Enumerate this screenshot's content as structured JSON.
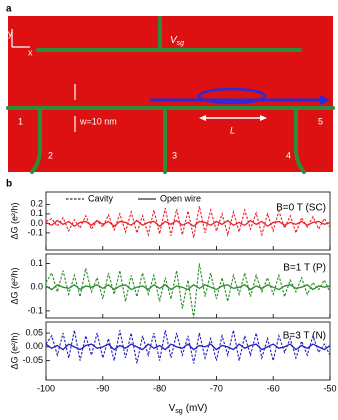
{
  "diagram": {
    "label": "a",
    "axis_y": "y",
    "axis_x": "x",
    "gate_label": {
      "text": "V",
      "subscript": "sg"
    },
    "width_label": "w=10 nm",
    "length_label": "L",
    "terminals": [
      "1",
      "2",
      "3",
      "4",
      "5"
    ]
  },
  "panel_label": "b",
  "x_label": {
    "text": "V",
    "subscript": "sg",
    "rest": "(mV)"
  },
  "chart_data": [
    {
      "type": "line",
      "y_label": "ΔG (e²/h)",
      "annotation": "B=0 T (SC)",
      "annotation_color": "#e8212b",
      "x": [
        -100,
        -99,
        -98,
        -97,
        -96,
        -95,
        -94,
        -93,
        -92,
        -91,
        -90,
        -89,
        -88,
        -87,
        -86,
        -85,
        -84,
        -83,
        -82,
        -81,
        -80,
        -79,
        -78,
        -77,
        -76,
        -75,
        -74,
        -73,
        -72,
        -71,
        -70,
        -69,
        -68,
        -67,
        -66,
        -65,
        -64,
        -63,
        -62,
        -61,
        -60,
        -59,
        -58,
        -57,
        -56,
        -55,
        -54,
        -53,
        -52,
        -51,
        -50
      ],
      "xlim": [
        -100,
        -50
      ],
      "xticks": [
        -100,
        -90,
        -80,
        -70,
        -60,
        -50
      ],
      "ylim": [
        -0.28,
        0.33
      ],
      "yticks": [
        {
          "value": 0.2,
          "label": "0.2"
        },
        {
          "value": 0.1,
          "label": "0.1"
        },
        {
          "value": 0,
          "label": "0.0"
        },
        {
          "value": -0.1,
          "label": "-0.1"
        }
      ],
      "series": [
        {
          "name": "Cavity",
          "color": "#e8212b",
          "dashed": true,
          "values": [
            0.02,
            0.05,
            -0.03,
            0.06,
            -0.08,
            0.04,
            -0.05,
            0.08,
            -0.06,
            0.03,
            -0.04,
            0.09,
            -0.07,
            0.1,
            -0.09,
            0.12,
            -0.1,
            0.08,
            -0.12,
            0.14,
            -0.11,
            0.16,
            -0.13,
            0.15,
            -0.12,
            0.13,
            -0.15,
            0.18,
            -0.1,
            0.14,
            -0.08,
            0.1,
            -0.12,
            0.12,
            -0.09,
            0.14,
            -0.06,
            0.11,
            -0.12,
            0.1,
            -0.08,
            0.13,
            -0.05,
            0.08,
            -0.1,
            0.06,
            -0.04,
            0.07,
            -0.06,
            0.05,
            -0.04
          ]
        },
        {
          "name": "Open wire",
          "color": "#e8212b",
          "dashed": false,
          "values": [
            0.01,
            -0.02,
            0.03,
            -0.01,
            0.02,
            -0.03,
            0.01,
            0.02,
            -0.02,
            0.03,
            -0.01,
            0.02,
            -0.03,
            0.02,
            0.01,
            -0.02,
            0.03,
            -0.02,
            0.01,
            0.02,
            -0.03,
            0.02,
            -0.01,
            0.03,
            -0.02,
            0.01,
            -0.03,
            0.02,
            0.01,
            -0.02,
            0.02,
            -0.01,
            0.03,
            -0.02,
            0.01,
            -0.02,
            0.03,
            -0.01,
            0.02,
            -0.03,
            0.01,
            0.02,
            -0.02,
            0.01,
            -0.01,
            0.02,
            -0.02,
            0.01,
            0.02,
            -0.01,
            0.01
          ]
        }
      ]
    },
    {
      "type": "line",
      "y_label": "ΔG (e²/h)",
      "annotation": "B=1 T (P)",
      "annotation_color": "#2a8a2a",
      "x": [
        -100,
        -99,
        -98,
        -97,
        -96,
        -95,
        -94,
        -93,
        -92,
        -91,
        -90,
        -89,
        -88,
        -87,
        -86,
        -85,
        -84,
        -83,
        -82,
        -81,
        -80,
        -79,
        -78,
        -77,
        -76,
        -75,
        -74,
        -73,
        -72,
        -71,
        -70,
        -69,
        -68,
        -67,
        -66,
        -65,
        -64,
        -63,
        -62,
        -61,
        -60,
        -59,
        -58,
        -57,
        -56,
        -55,
        -54,
        -53,
        -52,
        -51,
        -50
      ],
      "xlim": [
        -100,
        -50
      ],
      "xticks": [
        -100,
        -90,
        -80,
        -70,
        -60,
        -50
      ],
      "ylim": [
        -0.13,
        0.14
      ],
      "yticks": [
        0.1,
        {
          "value": 0,
          "label": "0.0"
        },
        -0.1
      ],
      "series": [
        {
          "color": "#2a8a2a",
          "dashed": true,
          "values": [
            0.02,
            0.06,
            -0.02,
            0.07,
            -0.03,
            0.05,
            -0.04,
            0.08,
            -0.02,
            0.04,
            -0.05,
            0.06,
            -0.03,
            0.07,
            -0.06,
            0.05,
            -0.04,
            0.06,
            -0.03,
            0.05,
            -0.06,
            0.04,
            -0.05,
            0.07,
            -0.09,
            0.03,
            -0.13,
            0.1,
            -0.04,
            0.06,
            -0.05,
            0.04,
            -0.06,
            0.05,
            -0.03,
            0.06,
            -0.04,
            0.05,
            -0.02,
            0.04,
            -0.03,
            0.05,
            -0.04,
            0.03,
            -0.02,
            0.04,
            -0.03,
            0.02,
            -0.01,
            0.03,
            -0.02
          ]
        },
        {
          "color": "#2a8a2a",
          "dashed": false,
          "values": [
            0.005,
            -0.01,
            0.01,
            0,
            -0.005,
            0.01,
            -0.01,
            0.005,
            0,
            0.01,
            -0.005,
            0.01,
            -0.01,
            0.005,
            0.01,
            -0.01,
            0,
            0.005,
            -0.01,
            0.01,
            -0.005,
            0.01,
            -0.01,
            0.005,
            0,
            -0.01,
            0.01,
            -0.005,
            0.01,
            0,
            -0.01,
            0.005,
            0.01,
            -0.005,
            0,
            0.01,
            -0.01,
            0.005,
            -0.005,
            0.01,
            0,
            -0.01,
            0.005,
            0.01,
            -0.005,
            0,
            0.01,
            -0.01,
            0.005,
            0,
            0.005
          ]
        }
      ]
    },
    {
      "type": "line",
      "y_label": "ΔG (e²/h)",
      "annotation": "B=3 T (N)",
      "annotation_color": "#2020c0",
      "x": [
        -100,
        -99,
        -98,
        -97,
        -96,
        -95,
        -94,
        -93,
        -92,
        -91,
        -90,
        -89,
        -88,
        -87,
        -86,
        -85,
        -84,
        -83,
        -82,
        -81,
        -80,
        -79,
        -78,
        -77,
        -76,
        -75,
        -74,
        -73,
        -72,
        -71,
        -70,
        -69,
        -68,
        -67,
        -66,
        -65,
        -64,
        -63,
        -62,
        -61,
        -60,
        -59,
        -58,
        -57,
        -56,
        -55,
        -54,
        -53,
        -52,
        -51,
        -50
      ],
      "xlim": [
        -100,
        -50
      ],
      "xticks": [
        -100,
        -90,
        -80,
        -70,
        -60,
        -50
      ],
      "ylim": [
        -0.12,
        0.09
      ],
      "yticks": [
        0.05,
        {
          "value": 0,
          "label": "0.00"
        },
        -0.05
      ],
      "series": [
        {
          "color": "#2020c0",
          "dashed": true,
          "values": [
            0.01,
            0.04,
            -0.03,
            0.05,
            -0.04,
            0.06,
            -0.05,
            0.04,
            -0.03,
            0.05,
            -0.04,
            0.03,
            -0.05,
            0.06,
            -0.04,
            0.05,
            -0.06,
            0.04,
            -0.03,
            0.05,
            -0.05,
            0.06,
            -0.04,
            0.05,
            -0.03,
            0.04,
            -0.06,
            0.05,
            -0.04,
            0.03,
            -0.05,
            0.04,
            -0.03,
            0.06,
            -0.05,
            0.04,
            -0.03,
            0.05,
            -0.04,
            0.03,
            -0.05,
            0.04,
            -0.02,
            0.03,
            -0.04,
            0.02,
            -0.03,
            0.04,
            -0.02,
            0.01,
            -0.03
          ]
        },
        {
          "color": "#2020c0",
          "dashed": false,
          "values": [
            0.01,
            -0.005,
            0.005,
            -0.01,
            0.01,
            0,
            -0.01,
            0.005,
            0.01,
            -0.005,
            0,
            0.01,
            -0.01,
            0.005,
            -0.005,
            0.01,
            0,
            -0.01,
            0.01,
            -0.005,
            0.005,
            -0.01,
            0.01,
            0,
            -0.005,
            0.01,
            -0.01,
            0.005,
            0,
            0.01,
            -0.01,
            0.005,
            0,
            -0.01,
            0.01,
            -0.005,
            0.005,
            0.01,
            -0.01,
            0,
            0.01,
            -0.005,
            0,
            0.01,
            -0.01,
            0.005,
            -0.005,
            0.01,
            0,
            -0.01,
            0.005
          ]
        }
      ]
    }
  ]
}
